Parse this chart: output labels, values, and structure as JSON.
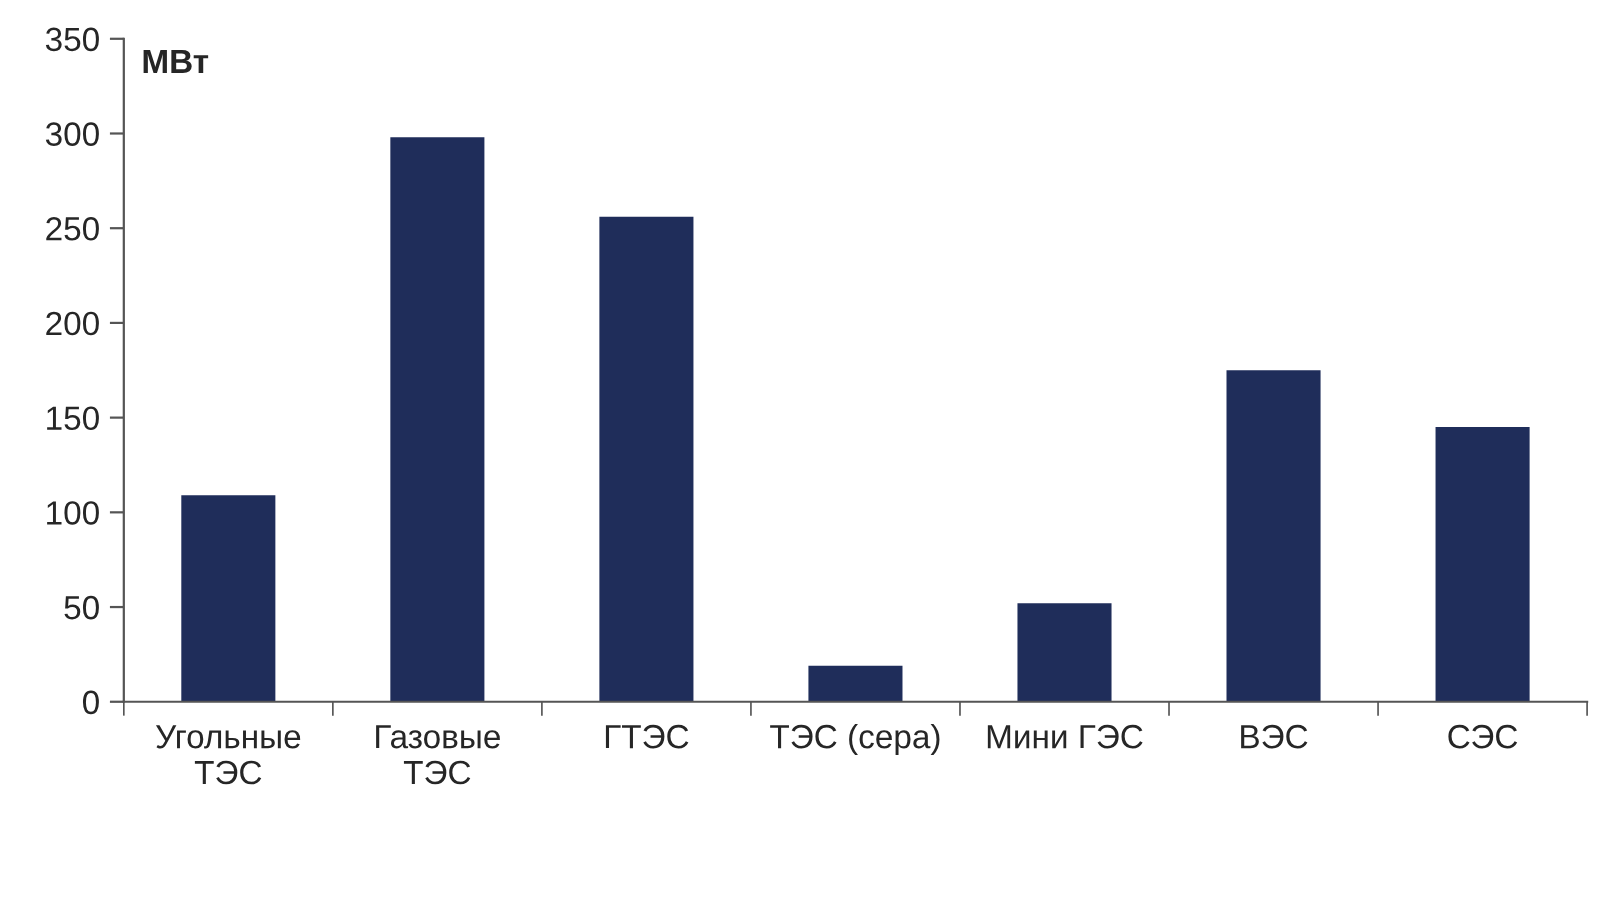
{
  "chart_data": {
    "type": "bar",
    "ylabel": "МВт",
    "categories": [
      "Угольные\nТЭС",
      "Газовые\nТЭС",
      "ГТЭС",
      "ТЭС (сера)",
      "Мини ГЭС",
      "ВЭС",
      "СЭС"
    ],
    "values": [
      109,
      298,
      256,
      19,
      52,
      175,
      145
    ],
    "color": "#1f2d5a",
    "ylim": [
      0,
      350
    ],
    "yticks": [
      0,
      50,
      100,
      150,
      200,
      250,
      300,
      350
    ],
    "grid": false
  }
}
